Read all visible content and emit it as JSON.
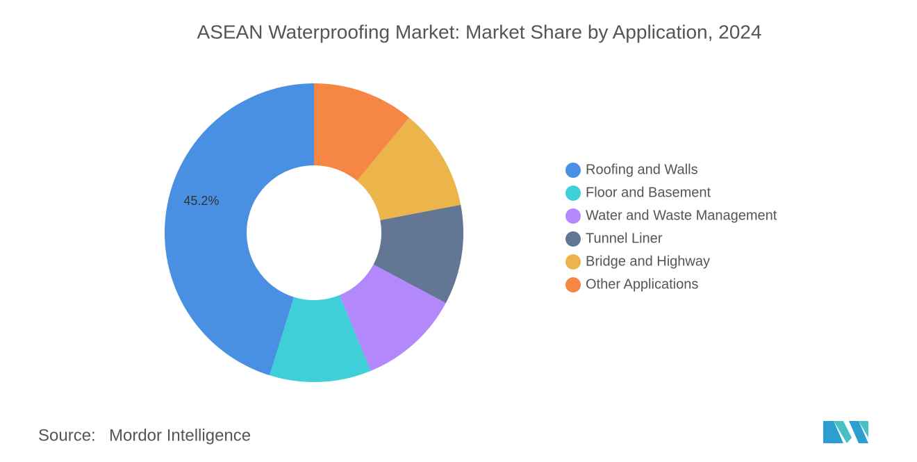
{
  "chart_data": {
    "type": "donut",
    "title": "ASEAN Waterproofing Market: Market Share by Application, 2024",
    "categories": [
      "Roofing and Walls",
      "Floor and Basement",
      "Water and Waste Management",
      "Tunnel Liner",
      "Bridge and Highway",
      "Other Applications"
    ],
    "values": [
      45.2,
      11,
      11,
      10.8,
      11,
      11
    ],
    "value_labels": [
      "45.2%",
      null,
      null,
      null,
      null,
      null
    ],
    "colors": [
      "#4a90e2",
      "#3fcfd9",
      "#b388fb",
      "#637694",
      "#ebb54c",
      "#f58643"
    ],
    "legend": "right",
    "source_label": "Source:",
    "source": "Mordor Intelligence"
  }
}
